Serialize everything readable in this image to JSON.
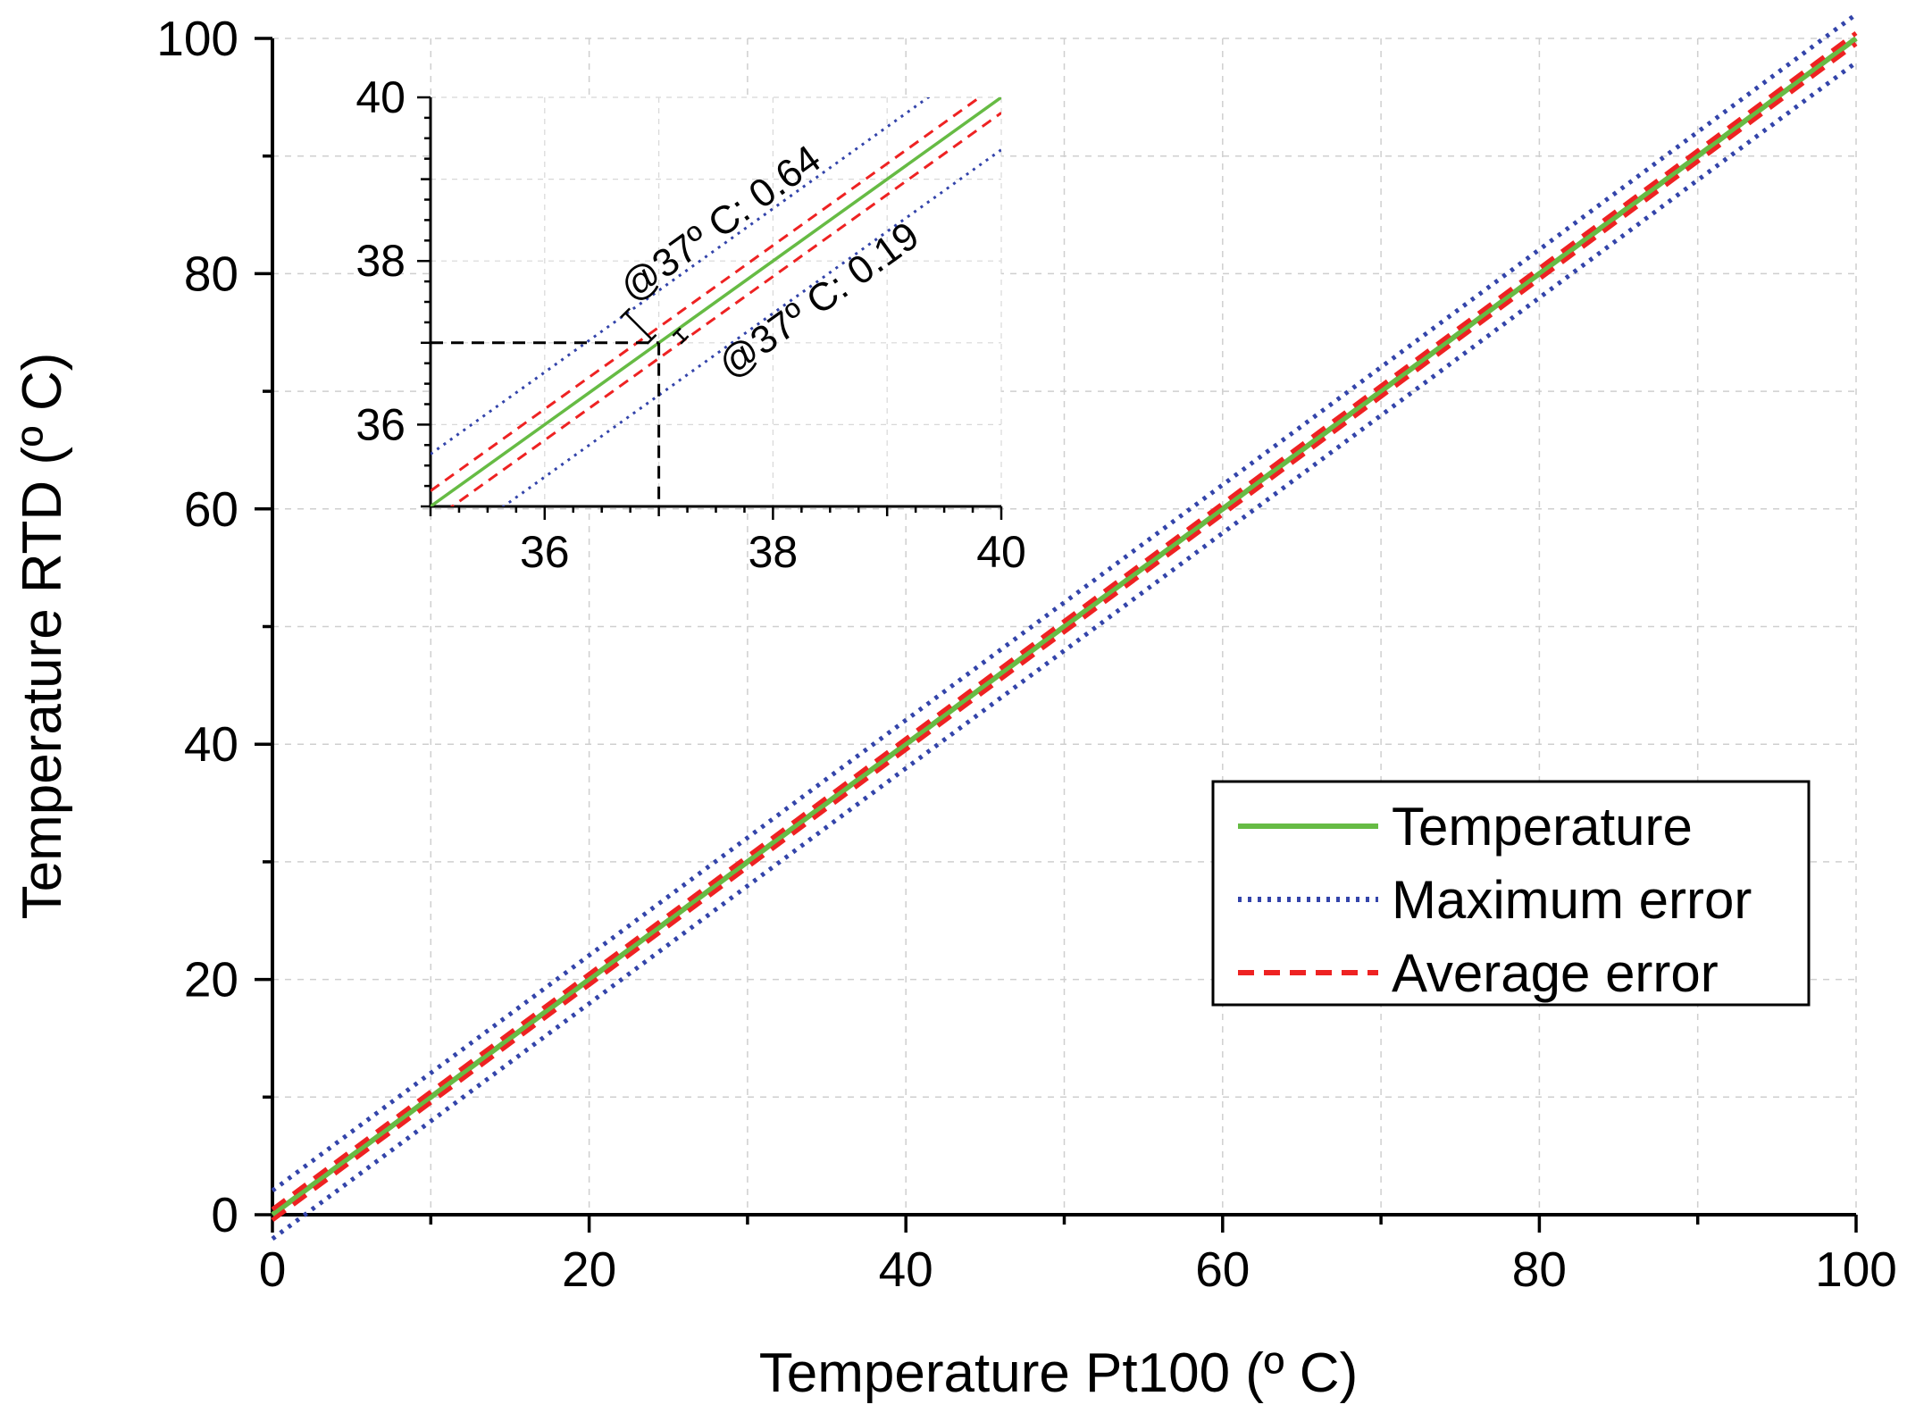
{
  "chart_data": {
    "type": "line",
    "xlabel": "Temperature Pt100 (º C)",
    "ylabel": "Temperature RTD (º C)",
    "xlim": [
      0,
      100
    ],
    "ylim": [
      0,
      100
    ],
    "x_ticks": [
      "0",
      "20",
      "40",
      "60",
      "80",
      "100"
    ],
    "y_ticks": [
      "0",
      "20",
      "40",
      "60",
      "80",
      "100"
    ],
    "grid": true,
    "legend_position": "right-lower-middle",
    "series": [
      {
        "name": "Temperature",
        "style": "solid",
        "color": "#66bb44",
        "offset": 0,
        "x": [
          0,
          100
        ],
        "y": [
          0,
          100
        ]
      },
      {
        "name": "Maximum error",
        "style": "dotted",
        "color": "#3344aa",
        "offset": 0.64,
        "x": [
          0,
          100
        ],
        "y_upper": [
          0.64,
          100.64
        ],
        "y_lower": [
          -0.64,
          99.36
        ]
      },
      {
        "name": "Average error",
        "style": "dashed",
        "color": "#ee2222",
        "offset": 0.19,
        "x": [
          0,
          100
        ],
        "y_upper": [
          0.19,
          100.19
        ],
        "y_lower": [
          -0.19,
          99.81
        ]
      }
    ],
    "inset": {
      "xlim": [
        35,
        40
      ],
      "ylim": [
        35,
        40
      ],
      "x_ticks": [
        "36",
        "38",
        "40"
      ],
      "y_ticks": [
        "36",
        "38",
        "40"
      ],
      "reference": {
        "x": 37,
        "y": 37
      },
      "annotations": [
        "@37º C: 0.64",
        "@37º C: 0.19"
      ]
    }
  }
}
